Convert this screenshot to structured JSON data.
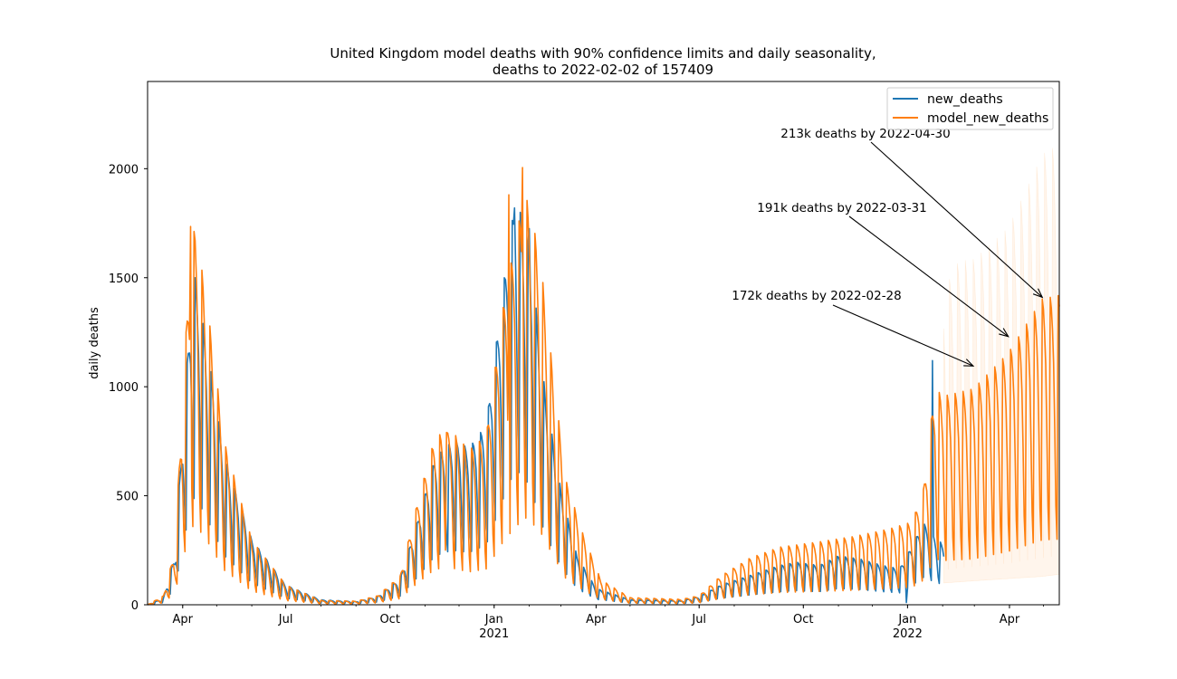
{
  "chart_data": {
    "type": "line",
    "title_line1": "United Kingdom model deaths with 90% confidence limits and daily seasonality,",
    "title_line2": "deaths to 2022-02-02 of 157409",
    "xlabel": "",
    "ylabel": "daily deaths",
    "xlim": [
      "2020-03-01",
      "2022-05-15"
    ],
    "ylim": [
      0,
      2400
    ],
    "y_ticks": [
      0,
      500,
      1000,
      1500,
      2000
    ],
    "x_ticks": [
      {
        "date": "2020-04-01",
        "label": "Apr",
        "sublabel": ""
      },
      {
        "date": "2020-07-01",
        "label": "Jul",
        "sublabel": ""
      },
      {
        "date": "2020-10-01",
        "label": "Oct",
        "sublabel": ""
      },
      {
        "date": "2021-01-01",
        "label": "Jan",
        "sublabel": "2021"
      },
      {
        "date": "2021-04-01",
        "label": "Apr",
        "sublabel": ""
      },
      {
        "date": "2021-07-01",
        "label": "Jul",
        "sublabel": ""
      },
      {
        "date": "2021-10-01",
        "label": "Oct",
        "sublabel": ""
      },
      {
        "date": "2022-01-01",
        "label": "Jan",
        "sublabel": "2022"
      },
      {
        "date": "2022-04-01",
        "label": "Apr",
        "sublabel": ""
      }
    ],
    "grid": false,
    "legend_position": "top-right",
    "series": [
      {
        "name": "new_deaths",
        "color": "#1f77b4",
        "end_date": "2022-02-02",
        "anchors": [
          [
            "2020-03-01",
            0
          ],
          [
            "2020-03-15",
            20
          ],
          [
            "2020-03-25",
            150
          ],
          [
            "2020-04-08",
            900
          ],
          [
            "2020-04-12",
            1000
          ],
          [
            "2020-04-22",
            800
          ],
          [
            "2020-05-08",
            450
          ],
          [
            "2020-06-01",
            200
          ],
          [
            "2020-07-01",
            60
          ],
          [
            "2020-08-01",
            15
          ],
          [
            "2020-09-01",
            10
          ],
          [
            "2020-09-20",
            25
          ],
          [
            "2020-10-10",
            80
          ],
          [
            "2020-10-25",
            250
          ],
          [
            "2020-11-10",
            450
          ],
          [
            "2020-11-25",
            500
          ],
          [
            "2020-12-10",
            480
          ],
          [
            "2020-12-25",
            550
          ],
          [
            "2021-01-10",
            1000
          ],
          [
            "2021-01-20",
            1250
          ],
          [
            "2021-02-01",
            1100
          ],
          [
            "2021-02-15",
            650
          ],
          [
            "2021-03-01",
            350
          ],
          [
            "2021-03-15",
            150
          ],
          [
            "2021-04-01",
            50
          ],
          [
            "2021-05-01",
            15
          ],
          [
            "2021-06-15",
            12
          ],
          [
            "2021-07-01",
            25
          ],
          [
            "2021-07-20",
            60
          ],
          [
            "2021-08-15",
            90
          ],
          [
            "2021-09-10",
            120
          ],
          [
            "2021-09-25",
            130
          ],
          [
            "2021-10-15",
            120
          ],
          [
            "2021-11-01",
            150
          ],
          [
            "2021-11-20",
            140
          ],
          [
            "2021-12-10",
            120
          ],
          [
            "2021-12-25",
            110
          ],
          [
            "2022-01-05",
            180
          ],
          [
            "2022-01-15",
            250
          ],
          [
            "2022-02-02",
            180
          ]
        ],
        "amplitude": 0.5,
        "spikes": [
          [
            "2022-01-23",
            1120
          ],
          [
            "2021-01-19",
            1820
          ],
          [
            "2021-02-01",
            1725
          ],
          [
            "2021-12-31",
            10
          ]
        ]
      },
      {
        "name": "model_new_deaths",
        "color": "#ff7f0e",
        "end_date": "2022-05-15",
        "anchors": [
          [
            "2020-03-01",
            0
          ],
          [
            "2020-03-15",
            25
          ],
          [
            "2020-03-25",
            150
          ],
          [
            "2020-04-08",
            1000
          ],
          [
            "2020-04-12",
            1050
          ],
          [
            "2020-04-22",
            850
          ],
          [
            "2020-05-08",
            450
          ],
          [
            "2020-06-01",
            180
          ],
          [
            "2020-07-01",
            55
          ],
          [
            "2020-08-01",
            12
          ],
          [
            "2020-09-01",
            10
          ],
          [
            "2020-09-20",
            25
          ],
          [
            "2020-10-10",
            80
          ],
          [
            "2020-10-25",
            280
          ],
          [
            "2020-11-10",
            470
          ],
          [
            "2020-11-25",
            480
          ],
          [
            "2020-12-10",
            430
          ],
          [
            "2020-12-25",
            470
          ],
          [
            "2021-01-10",
            850
          ],
          [
            "2021-01-28",
            1150
          ],
          [
            "2021-02-10",
            980
          ],
          [
            "2021-02-20",
            700
          ],
          [
            "2021-03-05",
            350
          ],
          [
            "2021-03-20",
            200
          ],
          [
            "2021-04-05",
            70
          ],
          [
            "2021-05-01",
            20
          ],
          [
            "2021-06-15",
            15
          ],
          [
            "2021-07-01",
            25
          ],
          [
            "2021-07-20",
            80
          ],
          [
            "2021-08-15",
            130
          ],
          [
            "2021-09-10",
            160
          ],
          [
            "2021-10-15",
            175
          ],
          [
            "2021-11-15",
            190
          ],
          [
            "2021-12-15",
            210
          ],
          [
            "2022-01-05",
            230
          ],
          [
            "2022-01-15",
            320
          ],
          [
            "2022-01-25",
            600
          ],
          [
            "2022-02-02",
            580
          ],
          [
            "2022-02-28",
            600
          ],
          [
            "2022-03-31",
            700
          ],
          [
            "2022-04-30",
            850
          ],
          [
            "2022-05-15",
            860
          ]
        ],
        "amplitude": 0.65,
        "peaks": [
          [
            "2020-04-08",
            1735
          ],
          [
            "2021-01-26",
            2005
          ],
          [
            "2021-01-14",
            1880
          ],
          [
            "2020-11-20",
            790
          ]
        ]
      }
    ],
    "confidence_band": {
      "color": "#ffbf80",
      "start_date": "2022-02-02",
      "end_date": "2022-05-15",
      "upper_anchors": [
        [
          "2022-02-02",
          1500
        ],
        [
          "2022-02-15",
          1640
        ],
        [
          "2022-03-01",
          1650
        ],
        [
          "2022-03-31",
          1800
        ],
        [
          "2022-04-30",
          2150
        ],
        [
          "2022-05-15",
          2200
        ]
      ],
      "lower_anchors": [
        [
          "2022-02-02",
          100
        ],
        [
          "2022-03-01",
          110
        ],
        [
          "2022-04-30",
          130
        ],
        [
          "2022-05-15",
          140
        ]
      ]
    },
    "annotations": [
      {
        "text": "213k deaths by 2022-04-30",
        "date": "2022-04-30",
        "value": 1410
      },
      {
        "text": "191k deaths by 2022-03-31",
        "date": "2022-03-31",
        "value": 1230
      },
      {
        "text": "172k deaths by 2022-02-28",
        "date": "2022-02-28",
        "value": 1095
      }
    ]
  }
}
